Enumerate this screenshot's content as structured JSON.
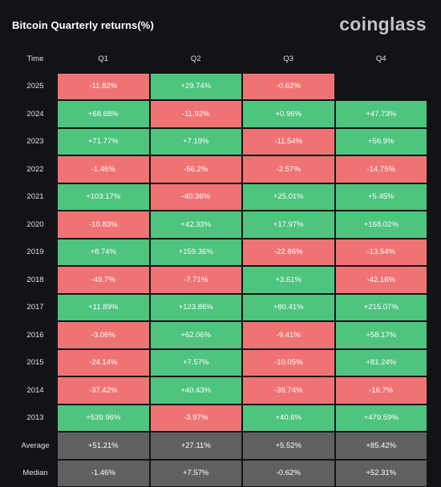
{
  "header": {
    "title": "Bitcoin Quarterly returns(%)",
    "brand": "coinglass"
  },
  "colors": {
    "positive": "#4ec47f",
    "negative": "#f07373",
    "summary": "#606061",
    "background": "#121316"
  },
  "chart_data": {
    "type": "table",
    "columns": [
      "Time",
      "Q1",
      "Q2",
      "Q3",
      "Q4"
    ],
    "rows": [
      {
        "label": "2025",
        "cells": [
          "-11.82%",
          "+29.74%",
          "-0.62%",
          ""
        ]
      },
      {
        "label": "2024",
        "cells": [
          "+68.68%",
          "-11.92%",
          "+0.96%",
          "+47.73%"
        ]
      },
      {
        "label": "2023",
        "cells": [
          "+71.77%",
          "+7.19%",
          "-11.54%",
          "+56.9%"
        ]
      },
      {
        "label": "2022",
        "cells": [
          "-1.46%",
          "-56.2%",
          "-2.57%",
          "-14.75%"
        ]
      },
      {
        "label": "2021",
        "cells": [
          "+103.17%",
          "-40.36%",
          "+25.01%",
          "+5.45%"
        ]
      },
      {
        "label": "2020",
        "cells": [
          "-10.83%",
          "+42.33%",
          "+17.97%",
          "+168.02%"
        ]
      },
      {
        "label": "2019",
        "cells": [
          "+8.74%",
          "+159.36%",
          "-22.86%",
          "-13.54%"
        ]
      },
      {
        "label": "2018",
        "cells": [
          "-49.7%",
          "-7.71%",
          "+3.61%",
          "-42.16%"
        ]
      },
      {
        "label": "2017",
        "cells": [
          "+11.89%",
          "+123.86%",
          "+80.41%",
          "+215.07%"
        ]
      },
      {
        "label": "2016",
        "cells": [
          "-3.06%",
          "+62.06%",
          "-9.41%",
          "+58.17%"
        ]
      },
      {
        "label": "2015",
        "cells": [
          "-24.14%",
          "+7.57%",
          "-10.05%",
          "+81.24%"
        ]
      },
      {
        "label": "2014",
        "cells": [
          "-37.42%",
          "+40.43%",
          "-39.74%",
          "-16.7%"
        ]
      },
      {
        "label": "2013",
        "cells": [
          "+539.96%",
          "-3.97%",
          "+40.6%",
          "+479.59%"
        ]
      }
    ],
    "summary": [
      {
        "label": "Average",
        "cells": [
          "+51.21%",
          "+27.11%",
          "+5.52%",
          "+85.42%"
        ]
      },
      {
        "label": "Median",
        "cells": [
          "-1.46%",
          "+7.57%",
          "-0.62%",
          "+52.31%"
        ]
      }
    ]
  }
}
